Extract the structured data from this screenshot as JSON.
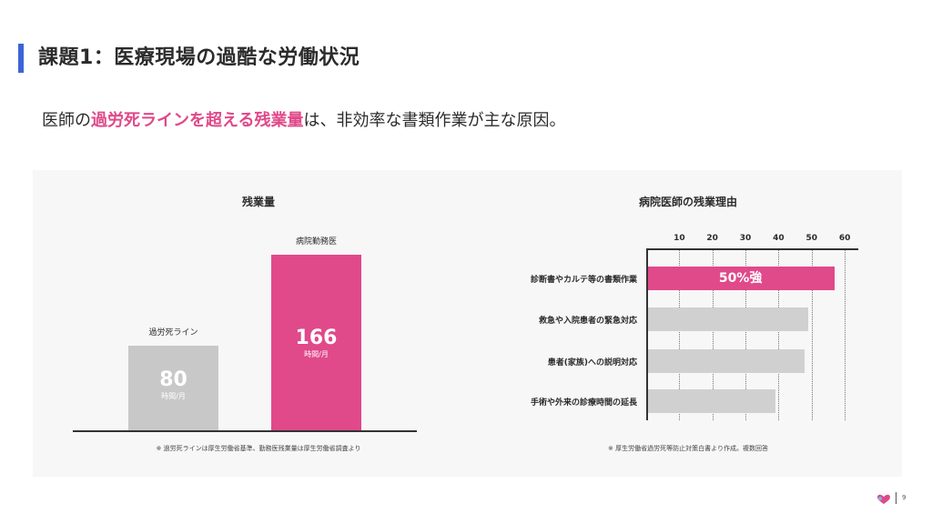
{
  "header": {
    "title": "課題1：医療現場の過酷な労働状況"
  },
  "subtitle": {
    "prefix": "医師の",
    "highlight": "過労死ラインを超える残業量",
    "suffix": "は、非効率な書類作業が主な原因。"
  },
  "left_panel": {
    "title": "残業量",
    "note": "※ 過労死ラインは厚生労働省基準、勤務医残業量は厚生労働省調査より"
  },
  "right_panel": {
    "title": "病院医師の残業理由",
    "note": "※ 厚生労働省過労死等防止対策白書より作成。複数回答"
  },
  "chart_data": [
    {
      "type": "bar",
      "title": "残業量",
      "categories": [
        "過労死ライン",
        "病院勤務医"
      ],
      "values": [
        80,
        166
      ],
      "value_labels": [
        "80",
        "166"
      ],
      "unit": "時間/月",
      "colors": [
        "#c8c8c8",
        "#e0498a"
      ]
    },
    {
      "type": "bar",
      "orientation": "horizontal",
      "title": "病院医師の残業理由",
      "categories": [
        "診断書やカルテ等の書類作業",
        "救急や入院患者の緊急対応",
        "患者(家族)への説明対応",
        "手術や外来の診療時間の延長"
      ],
      "values": [
        57,
        49,
        48,
        39
      ],
      "x_ticks": [
        "10",
        "20",
        "30",
        "40",
        "50",
        "60"
      ],
      "xlim": [
        0,
        63
      ],
      "grid": true,
      "annotation": "50%強",
      "colors": [
        "#e0498a",
        "#d0d0d0",
        "#d0d0d0",
        "#d0d0d0"
      ]
    }
  ],
  "footer": {
    "page_number": "9",
    "logo_icon": "heart-icon",
    "logo_color": "#e0498a"
  }
}
